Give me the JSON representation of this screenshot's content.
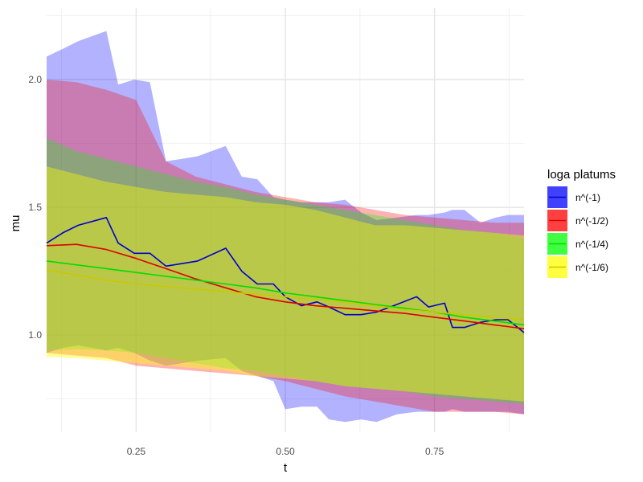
{
  "chart_data": {
    "type": "line",
    "xlabel": "t",
    "ylabel": "mu",
    "xlim": [
      0.1,
      0.9
    ],
    "ylim": [
      0.62,
      2.28
    ],
    "x_ticks": [
      0.25,
      0.5,
      0.75
    ],
    "x_tick_labels": [
      "0.25",
      "0.50",
      "0.75"
    ],
    "y_ticks": [
      1.0,
      1.5,
      2.0
    ],
    "y_tick_labels": [
      "1.0",
      "1.5",
      "2.0"
    ],
    "grid": true,
    "legend": {
      "title": "loga platums",
      "position": "right"
    },
    "series": [
      {
        "name": "n^(-1)",
        "color": "#0000ff",
        "line_color": "#0000cc",
        "band_opacity": 0.3,
        "x": [
          0.1,
          0.127,
          0.153,
          0.2,
          0.22,
          0.247,
          0.273,
          0.3,
          0.327,
          0.353,
          0.4,
          0.427,
          0.453,
          0.48,
          0.5,
          0.527,
          0.553,
          0.573,
          0.6,
          0.627,
          0.653,
          0.687,
          0.72,
          0.74,
          0.767,
          0.78,
          0.8,
          0.827,
          0.853,
          0.873,
          0.9
        ],
        "mean": [
          1.36,
          1.4,
          1.43,
          1.46,
          1.36,
          1.32,
          1.32,
          1.27,
          1.28,
          1.29,
          1.34,
          1.25,
          1.2,
          1.2,
          1.15,
          1.115,
          1.13,
          1.11,
          1.08,
          1.08,
          1.09,
          1.12,
          1.15,
          1.11,
          1.125,
          1.03,
          1.03,
          1.05,
          1.06,
          1.06,
          1.01
        ],
        "upper": [
          2.09,
          2.12,
          2.15,
          2.19,
          1.98,
          2.0,
          1.99,
          1.68,
          1.69,
          1.7,
          1.74,
          1.62,
          1.61,
          1.54,
          1.53,
          1.52,
          1.52,
          1.52,
          1.53,
          1.48,
          1.45,
          1.46,
          1.47,
          1.47,
          1.48,
          1.49,
          1.49,
          1.44,
          1.46,
          1.47,
          1.47
        ],
        "lower": [
          0.93,
          0.95,
          0.96,
          0.94,
          0.95,
          0.93,
          0.9,
          0.88,
          0.89,
          0.9,
          0.91,
          0.86,
          0.84,
          0.82,
          0.71,
          0.72,
          0.72,
          0.67,
          0.66,
          0.67,
          0.66,
          0.69,
          0.7,
          0.7,
          0.7,
          0.71,
          0.7,
          0.7,
          0.7,
          0.7,
          0.69
        ]
      },
      {
        "name": "n^(-1/2)",
        "color": "#ff0000",
        "line_color": "#dd0000",
        "band_opacity": 0.3,
        "x": [
          0.1,
          0.15,
          0.2,
          0.25,
          0.3,
          0.35,
          0.4,
          0.45,
          0.5,
          0.55,
          0.6,
          0.65,
          0.7,
          0.75,
          0.8,
          0.85,
          0.9
        ],
        "mean": [
          1.35,
          1.355,
          1.335,
          1.3,
          1.26,
          1.22,
          1.185,
          1.15,
          1.13,
          1.115,
          1.105,
          1.095,
          1.085,
          1.07,
          1.055,
          1.04,
          1.025
        ],
        "upper": [
          2.0,
          1.99,
          1.96,
          1.92,
          1.68,
          1.62,
          1.59,
          1.56,
          1.54,
          1.52,
          1.51,
          1.49,
          1.47,
          1.46,
          1.45,
          1.44,
          1.44
        ],
        "lower": [
          0.93,
          0.92,
          0.91,
          0.88,
          0.87,
          0.86,
          0.85,
          0.84,
          0.82,
          0.79,
          0.76,
          0.74,
          0.72,
          0.7,
          0.7,
          0.7,
          0.69
        ]
      },
      {
        "name": "n^(-1/4)",
        "color": "#00ff00",
        "line_color": "#00dd00",
        "band_opacity": 0.3,
        "x": [
          0.1,
          0.15,
          0.2,
          0.25,
          0.3,
          0.35,
          0.4,
          0.45,
          0.5,
          0.55,
          0.6,
          0.65,
          0.7,
          0.75,
          0.8,
          0.85,
          0.9
        ],
        "mean": [
          1.29,
          1.275,
          1.26,
          1.245,
          1.23,
          1.215,
          1.2,
          1.185,
          1.165,
          1.15,
          1.135,
          1.12,
          1.105,
          1.09,
          1.07,
          1.055,
          1.04
        ],
        "upper": [
          1.77,
          1.72,
          1.69,
          1.66,
          1.63,
          1.6,
          1.58,
          1.55,
          1.53,
          1.51,
          1.49,
          1.47,
          1.45,
          1.43,
          1.41,
          1.4,
          1.38
        ],
        "lower": [
          0.94,
          0.945,
          0.94,
          0.93,
          0.91,
          0.89,
          0.87,
          0.86,
          0.84,
          0.82,
          0.8,
          0.79,
          0.78,
          0.76,
          0.75,
          0.74,
          0.73
        ]
      },
      {
        "name": "n^(-1/6)",
        "color": "#ffff00",
        "line_color": "#c8c800",
        "band_opacity": 0.4,
        "x": [
          0.1,
          0.15,
          0.2,
          0.25,
          0.3,
          0.35,
          0.4,
          0.45,
          0.5,
          0.55,
          0.6,
          0.65,
          0.7,
          0.75,
          0.8,
          0.85,
          0.9
        ],
        "mean": [
          1.255,
          1.235,
          1.215,
          1.2,
          1.19,
          1.18,
          1.17,
          1.16,
          1.15,
          1.14,
          1.13,
          1.115,
          1.1,
          1.09,
          1.08,
          1.07,
          1.06
        ],
        "upper": [
          1.66,
          1.63,
          1.6,
          1.58,
          1.56,
          1.55,
          1.54,
          1.52,
          1.51,
          1.49,
          1.46,
          1.43,
          1.43,
          1.42,
          1.41,
          1.4,
          1.39
        ],
        "lower": [
          0.915,
          0.91,
          0.9,
          0.89,
          0.88,
          0.87,
          0.86,
          0.84,
          0.83,
          0.82,
          0.8,
          0.79,
          0.78,
          0.77,
          0.76,
          0.75,
          0.74
        ]
      }
    ]
  }
}
